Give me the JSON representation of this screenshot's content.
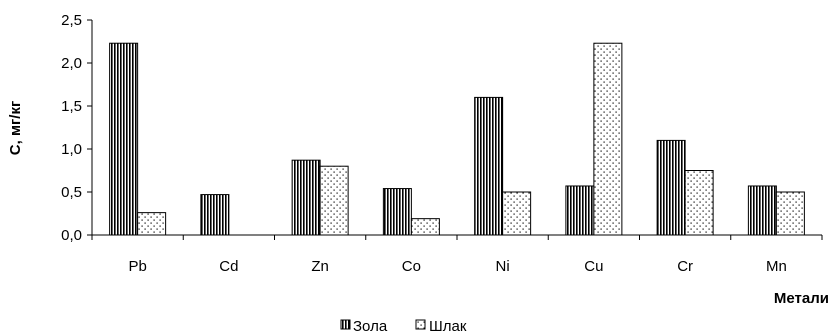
{
  "chart_data": {
    "type": "bar",
    "categories": [
      "Pb",
      "Cd",
      "Zn",
      "Co",
      "Ni",
      "Cu",
      "Cr",
      "Mn"
    ],
    "series": [
      {
        "name": "Зола",
        "values": [
          2.23,
          0.47,
          0.87,
          0.54,
          1.6,
          0.57,
          1.1,
          0.57
        ],
        "pattern": "vertical-stripes"
      },
      {
        "name": "Шлак",
        "values": [
          0.26,
          0.0,
          0.8,
          0.19,
          0.5,
          2.23,
          0.75,
          0.5
        ],
        "pattern": "dots"
      }
    ],
    "ylabel": "С, мг/кг",
    "xlabel": "Метали",
    "ylim": [
      0,
      2.5
    ],
    "yticks": [
      "0,0",
      "0,5",
      "1,0",
      "1,5",
      "2,0",
      "2,5"
    ],
    "grid": false,
    "legend_position": "bottom"
  }
}
